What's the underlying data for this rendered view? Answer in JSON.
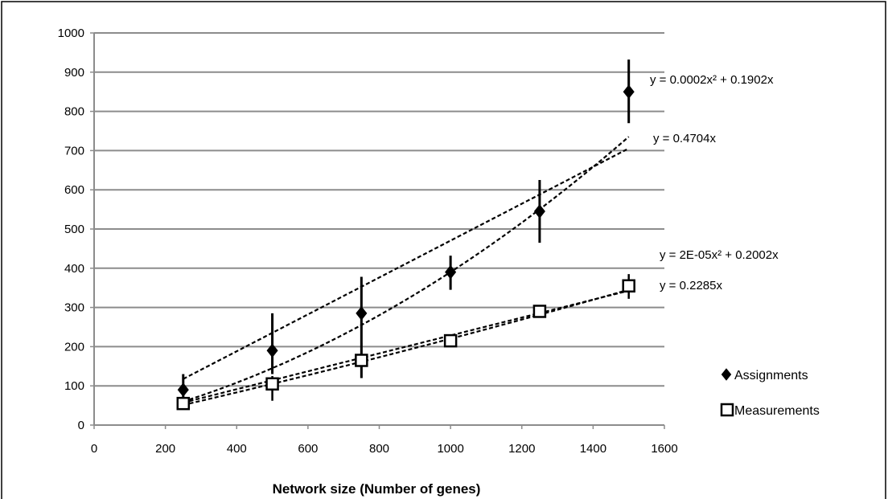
{
  "chart_data": {
    "type": "scatter",
    "xlabel": "Network size (Number of genes)",
    "ylabel": "",
    "xlim": [
      0,
      1600
    ],
    "ylim": [
      0,
      1000
    ],
    "xticks": [
      0,
      200,
      400,
      600,
      800,
      1000,
      1200,
      1400,
      1600
    ],
    "yticks": [
      0,
      100,
      200,
      300,
      400,
      500,
      600,
      700,
      800,
      900,
      1000
    ],
    "grid": "horizontal",
    "legend_position": "right",
    "series": [
      {
        "name": "Assignments",
        "marker": "filled-diamond",
        "color": "#000000",
        "x": [
          250,
          500,
          750,
          1000,
          1250,
          1500
        ],
        "y": [
          90,
          190,
          285,
          390,
          545,
          850
        ],
        "err_low": [
          60,
          130,
          120,
          345,
          465,
          770
        ],
        "err_high": [
          130,
          285,
          378,
          432,
          625,
          932
        ]
      },
      {
        "name": "Measurements",
        "marker": "open-square",
        "color": "#000000",
        "x": [
          250,
          500,
          750,
          1000,
          1250,
          1500
        ],
        "y": [
          55,
          105,
          165,
          215,
          290,
          355
        ],
        "err_low": [
          50,
          62,
          120,
          205,
          280,
          322
        ],
        "err_high": [
          62,
          125,
          210,
          228,
          302,
          385
        ]
      }
    ],
    "trendlines": [
      {
        "series": "Assignments",
        "kind": "poly2",
        "a": 0.0002,
        "b": 0.1902,
        "equation": "y = 0.0002x² + 0.1902x"
      },
      {
        "series": "Assignments",
        "kind": "linear",
        "b": 0.4704,
        "equation": "y = 0.4704x"
      },
      {
        "series": "Measurements",
        "kind": "poly2",
        "a": 2e-05,
        "b": 0.2002,
        "equation": "y = 2E-05x² + 0.2002x"
      },
      {
        "series": "Measurements",
        "kind": "linear",
        "b": 0.2285,
        "equation": "y = 0.2285x"
      }
    ]
  }
}
